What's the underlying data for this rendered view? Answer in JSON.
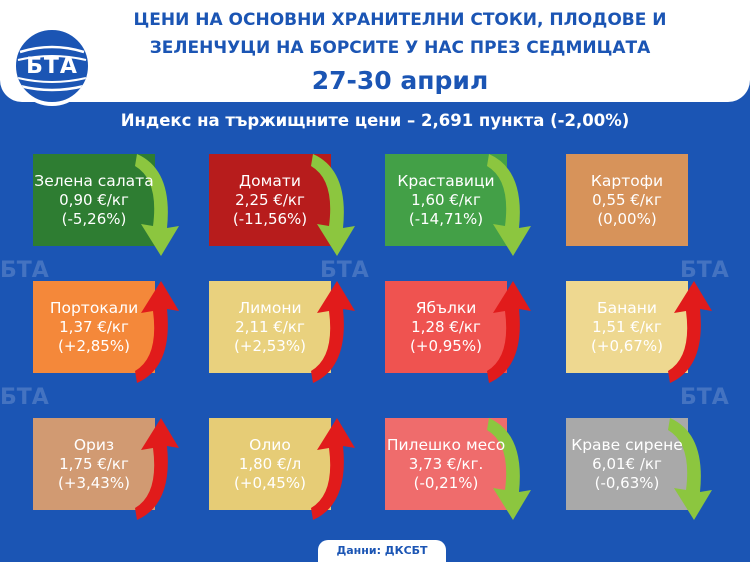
{
  "header": {
    "logo_text": "БТА",
    "title_line1": "ЦЕНИ НА ОСНОВНИ ХРАНИТЕЛНИ СТОКИ, ПЛОДОВЕ И",
    "title_line2": "ЗЕЛЕНЧУЦИ НА БОРСИТЕ У НАС ПРЕЗ СЕДМИЦАТА",
    "date": "27-30 април"
  },
  "index_text": "Индекс на тържищните цени – 2,691 пункта (-2,00%)",
  "items": [
    {
      "name": "Зелена салата",
      "price": "0,90 €/кг",
      "change": "(-5,26%)",
      "trend": "down",
      "color": "#2e7d32"
    },
    {
      "name": "Домати",
      "price": "2,25 €/кг",
      "change": "(-11,56%)",
      "trend": "down",
      "color": "#b71c1c"
    },
    {
      "name": "Краставици",
      "price": "1,60 €/кг",
      "change": "(-14,71%)",
      "trend": "down",
      "color": "#43a047"
    },
    {
      "name": "Картофи",
      "price": "0,55 €/кг",
      "change": "(0,00%)",
      "trend": "none",
      "color": "#d7935a"
    },
    {
      "name": "Портокали",
      "price": "1,37 €/кг",
      "change": "(+2,85%)",
      "trend": "up",
      "color": "#f4883a"
    },
    {
      "name": "Лимони",
      "price": "2,11 €/кг",
      "change": "(+2,53%)",
      "trend": "up",
      "color": "#e9d17e"
    },
    {
      "name": "Ябълки",
      "price": "1,28 €/кг",
      "change": "(+0,95%)",
      "trend": "up",
      "color": "#ef5350"
    },
    {
      "name": "Банани",
      "price": "1,51 €/кг",
      "change": "(+0,67%)",
      "trend": "up",
      "color": "#eed890"
    },
    {
      "name": "Ориз",
      "price": "1,75 €/кг",
      "change": "(+3,43%)",
      "trend": "up",
      "color": "#d19a72"
    },
    {
      "name": "Олио",
      "price": "1,80 €/л",
      "change": "(+0,45%)",
      "trend": "up",
      "color": "#e6cc76"
    },
    {
      "name": "Пилешко месо",
      "price": "3,73 €/кг.",
      "change": "(-0,21%)",
      "trend": "down",
      "color": "#ef6c6c"
    },
    {
      "name": "Краве сирене",
      "price": "6,01€ /кг",
      "change": "(-0,63%)",
      "trend": "down",
      "color": "#a9a9a9"
    }
  ],
  "footer": "Данни: ДКСБТ",
  "arrow_colors": {
    "down": "#8cc63f",
    "up": "#e11b1b"
  }
}
